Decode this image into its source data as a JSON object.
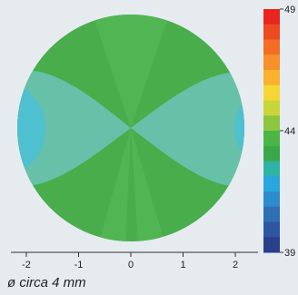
{
  "chart_data": {
    "type": "heatmap",
    "title": "",
    "xlabel": "",
    "ylabel": "",
    "xlim": [
      -2.5,
      2.5
    ],
    "x_ticks": [
      -2,
      -1,
      0,
      1,
      2
    ],
    "x_tick_labels": [
      "-2",
      "-1",
      "0",
      "1",
      "2"
    ],
    "grid": false,
    "legend": "colorbar-right",
    "colorbar": {
      "range": [
        39,
        49
      ],
      "tick_values": [
        49,
        44,
        39
      ],
      "tick_labels": [
        "49",
        "44",
        "39"
      ],
      "colors_top_to_bottom": [
        "#e8251f",
        "#ee4a22",
        "#f36d24",
        "#f7902a",
        "#f9b12e",
        "#f5d634",
        "#c8d63a",
        "#8cc63f",
        "#4bb646",
        "#3aa849",
        "#2eb3a6",
        "#29a7dd",
        "#2d8ccc",
        "#2e6fb5",
        "#2d56a0",
        "#2a3f8b"
      ]
    },
    "map": {
      "description_values": "circular aperture map, values between about 43 and 45",
      "zones": [
        {
          "value": 44.2,
          "color": "#49ad4b"
        },
        {
          "value": 43.9,
          "color": "#52b553"
        },
        {
          "value": 43.6,
          "color": "#5dbb77"
        },
        {
          "value": 43.2,
          "color": "#66c1a8"
        },
        {
          "value": 42.9,
          "color": "#4fc0cf"
        }
      ]
    }
  },
  "caption": "ø circa 4 mm",
  "page_background": "#e6ebf0"
}
